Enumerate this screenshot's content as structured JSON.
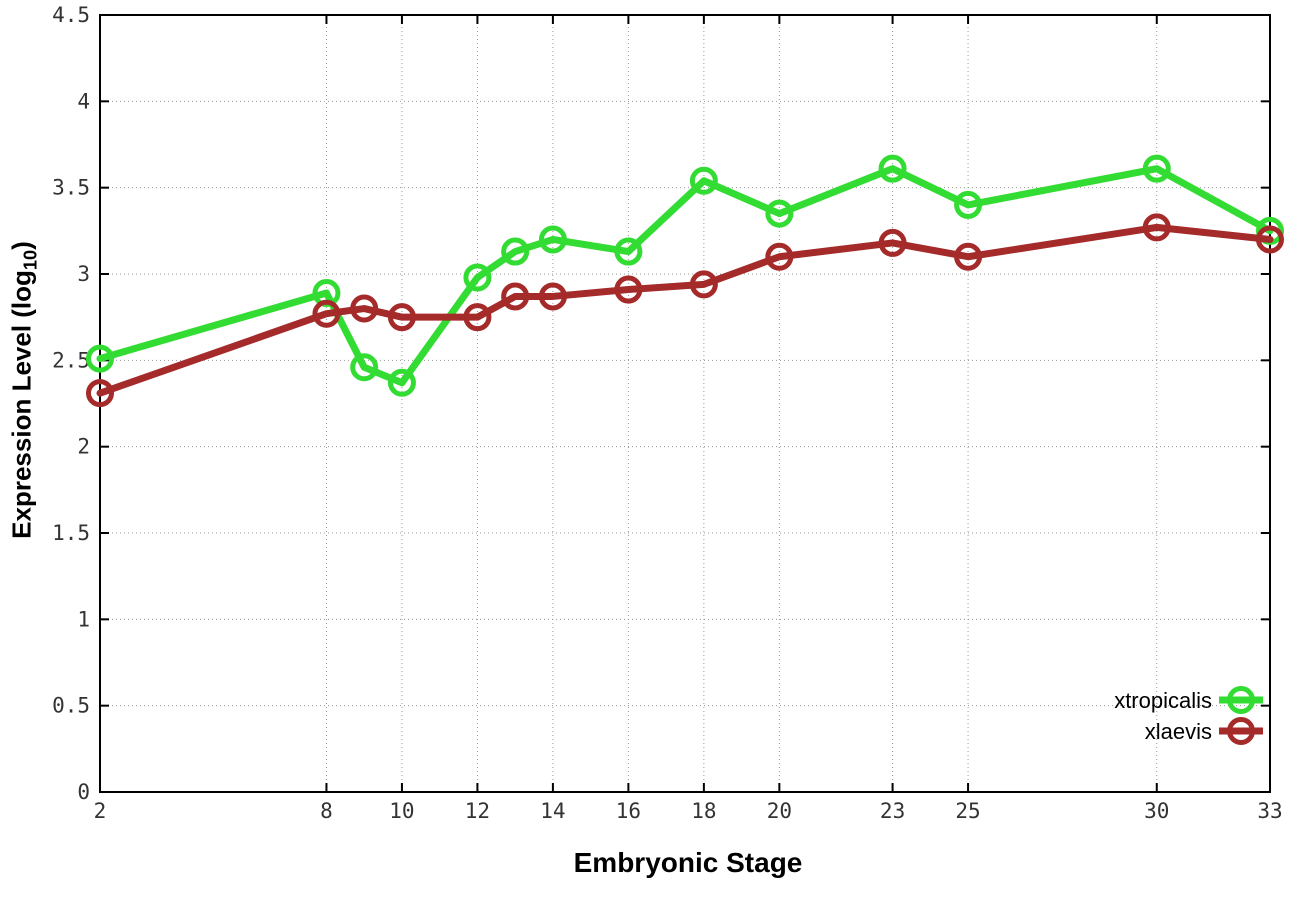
{
  "chart": {
    "xlabel": "Embryonic Stage",
    "ylabel_main": "Expression Level (log",
    "ylabel_sub": "10",
    "ylabel_end": ")"
  },
  "appearance": {
    "background": "#ffffff",
    "axis_color": "#000000",
    "grid_color": "#999999",
    "tick_label_color": "#333333"
  },
  "chart_data": {
    "type": "line",
    "title": "",
    "xlabel": "Embryonic Stage",
    "ylabel": "Expression Level (log10)",
    "xlim": [
      2,
      33
    ],
    "ylim": [
      0,
      4.5
    ],
    "grid": true,
    "marker": "open-circle",
    "legend_position": "bottom-right",
    "x": [
      2,
      8,
      9,
      10,
      12,
      13,
      14,
      16,
      18,
      20,
      23,
      25,
      30,
      33
    ],
    "series": [
      {
        "name": "xtropicalis",
        "color": "#32dc32",
        "values": [
          2.51,
          2.89,
          2.46,
          2.37,
          2.98,
          3.13,
          3.2,
          3.13,
          3.54,
          3.35,
          3.61,
          3.4,
          3.61,
          3.25
        ]
      },
      {
        "name": "xlaevis",
        "color": "#a52a2a",
        "values": [
          2.31,
          2.77,
          2.8,
          2.75,
          2.75,
          2.87,
          2.87,
          2.91,
          2.94,
          3.1,
          3.18,
          3.1,
          3.27,
          3.2
        ]
      }
    ],
    "x_ticks": {
      "values": [
        2,
        8,
        10,
        12,
        14,
        16,
        18,
        20,
        23,
        25,
        30,
        33
      ],
      "labels": [
        "2",
        "8",
        "10",
        "12",
        "14",
        "16",
        "18",
        "20",
        "23",
        "25",
        "30",
        "33"
      ]
    },
    "y_ticks": {
      "values": [
        0,
        0.5,
        1,
        1.5,
        2,
        2.5,
        3,
        3.5,
        4,
        4.5
      ],
      "labels": [
        "0",
        "0.5",
        "1",
        "1.5",
        "2",
        "2.5",
        "3",
        "3.5",
        "4",
        "4.5"
      ]
    }
  }
}
